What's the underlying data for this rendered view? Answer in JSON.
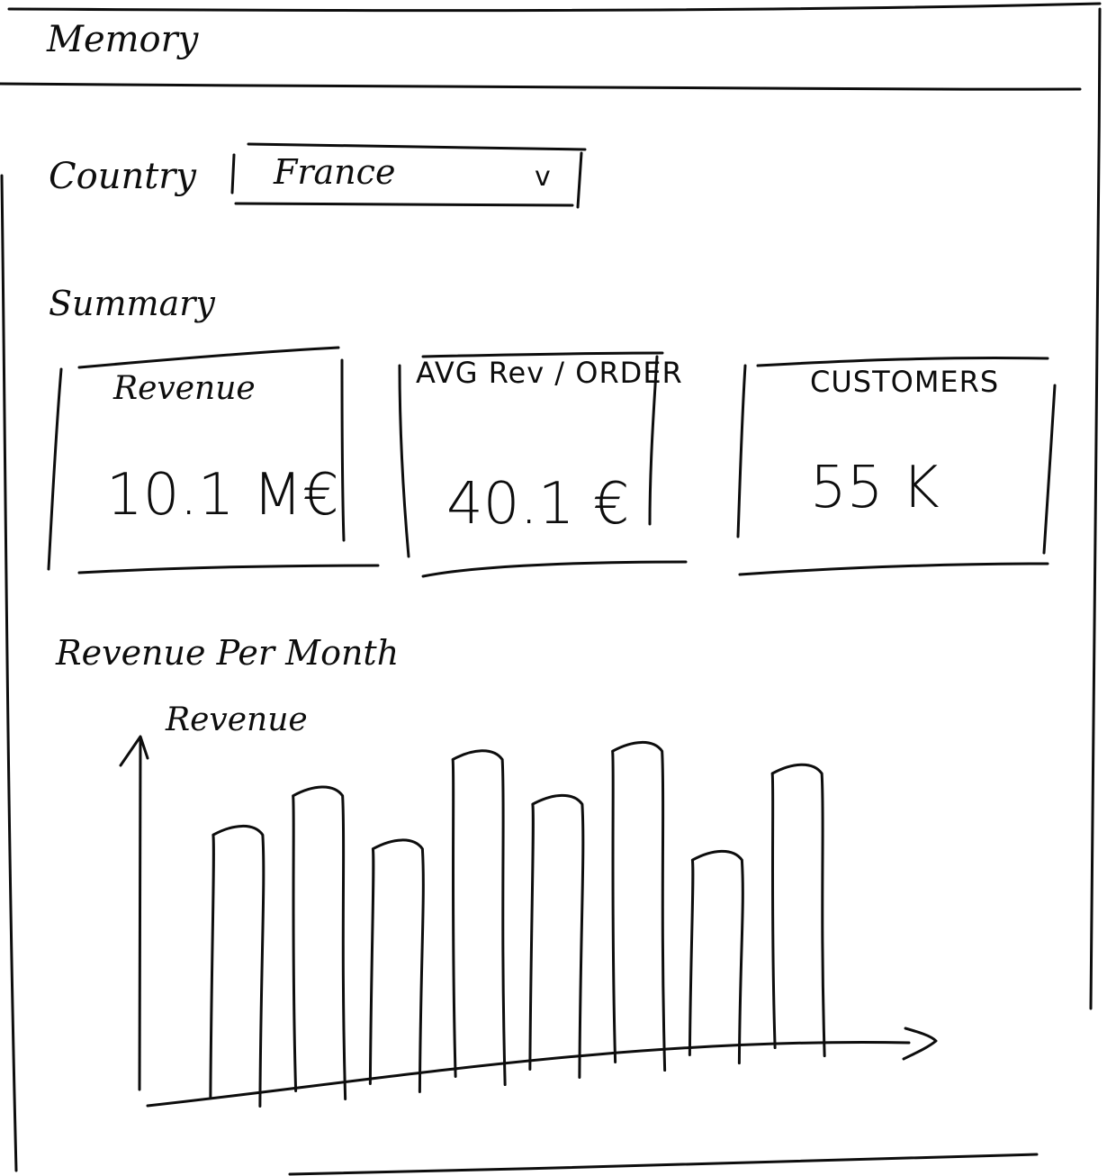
{
  "app": {
    "title": "Memory"
  },
  "filter": {
    "label": "Country",
    "selected": "France",
    "chevron_glyph": "v",
    "chevron_icon": "chevron-down-icon"
  },
  "summary": {
    "heading": "Summary",
    "cards": [
      {
        "label": "Revenue",
        "value": "10.1 M€"
      },
      {
        "label": "AVG Rev / ORDER",
        "value": "40.1 €"
      },
      {
        "label": "CUSTOMERS",
        "value": "55 K"
      }
    ]
  },
  "chart": {
    "title": "Revenue Per Month",
    "ylabel": "Revenue"
  },
  "chart_data": {
    "type": "bar",
    "title": "",
    "ylabel": "Revenue",
    "xlabel": "",
    "ylim": [
      0,
      100
    ],
    "grid": false,
    "values": [
      68,
      82,
      63,
      95,
      79,
      98,
      59,
      90
    ]
  }
}
